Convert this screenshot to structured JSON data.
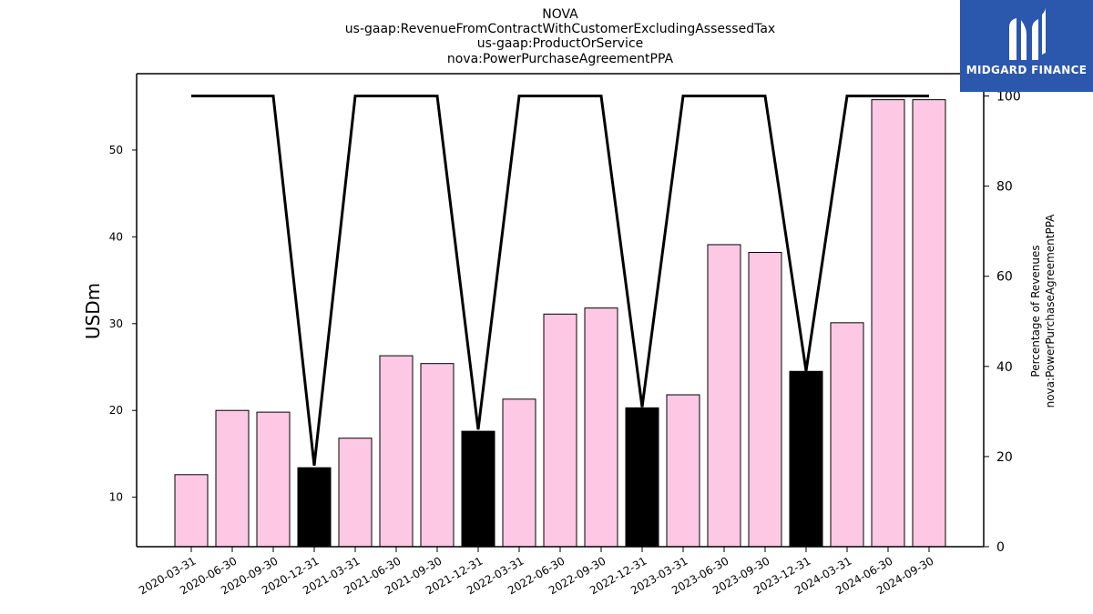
{
  "title_lines": [
    "NOVA",
    "us-gaap:RevenueFromContractWithCustomerExcludingAssessedTax",
    "us-gaap:ProductOrService",
    "nova:PowerPurchaseAgreementPPA"
  ],
  "logo": {
    "text": "MIDGARD FINANCE",
    "color": "#2b57ad"
  },
  "colors": {
    "bar_normal": "#fcc8e3",
    "bar_highlight": "#000000",
    "line": "#000000"
  },
  "chart_data": {
    "type": "bar",
    "ylabel": "USDm",
    "ylabel_right_lines": [
      "Percentage of Revenues",
      "nova:PowerPurchaseAgreementPPA"
    ],
    "ylim": [
      4.3,
      58.8
    ],
    "ylim_right": [
      0,
      100
    ],
    "yticks": [
      10,
      20,
      30,
      40,
      50
    ],
    "yticks_right": [
      0,
      20,
      40,
      60,
      80,
      100
    ],
    "categories": [
      "2020-03-31",
      "2020-06-30",
      "2020-09-30",
      "2020-12-31",
      "2021-03-31",
      "2021-06-30",
      "2021-09-30",
      "2021-12-31",
      "2022-03-31",
      "2022-06-30",
      "2022-09-30",
      "2022-12-31",
      "2023-03-31",
      "2023-06-30",
      "2023-09-30",
      "2023-12-31",
      "2024-03-31",
      "2024-06-30",
      "2024-09-30"
    ],
    "values": [
      12.6,
      20.0,
      19.8,
      13.4,
      16.8,
      26.3,
      25.4,
      17.6,
      21.3,
      31.1,
      31.8,
      20.3,
      21.8,
      39.1,
      38.2,
      24.5,
      30.1,
      55.8,
      55.8
    ],
    "highlight": [
      false,
      false,
      false,
      true,
      false,
      false,
      false,
      true,
      false,
      false,
      false,
      true,
      false,
      false,
      false,
      true,
      false,
      false,
      false
    ],
    "percentage": [
      100,
      100,
      100,
      18,
      100,
      100,
      100,
      26,
      100,
      100,
      100,
      31,
      100,
      100,
      100,
      39,
      100,
      100,
      100
    ],
    "grid": false,
    "legend": "none"
  }
}
